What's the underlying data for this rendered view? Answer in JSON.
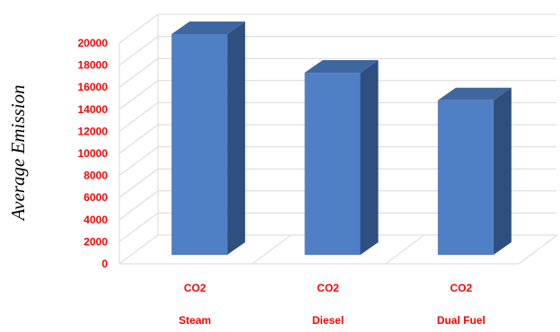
{
  "chart_data": {
    "type": "bar",
    "style": "3d-column",
    "title": "",
    "ylabel": "Average Emission",
    "xlabel": "",
    "ylim": [
      0,
      20000
    ],
    "yticks": [
      0,
      2000,
      4000,
      6000,
      8000,
      10000,
      12000,
      14000,
      16000,
      18000,
      20000
    ],
    "grid": true,
    "legend": "none",
    "categories": [
      {
        "gas": "CO2",
        "fuel": "Steam"
      },
      {
        "gas": "CO2",
        "fuel": "Diesel"
      },
      {
        "gas": "CO2",
        "fuel": "Dual Fuel"
      }
    ],
    "values": [
      20000,
      16500,
      14000
    ],
    "colors": {
      "bar_front": "#4f7fc4",
      "bar_side": "#2f507f",
      "bar_top": "#3f679f",
      "tick_labels": "#ff0000",
      "category_labels": "#ff0000",
      "gridlines": "#d9d9d9"
    }
  }
}
